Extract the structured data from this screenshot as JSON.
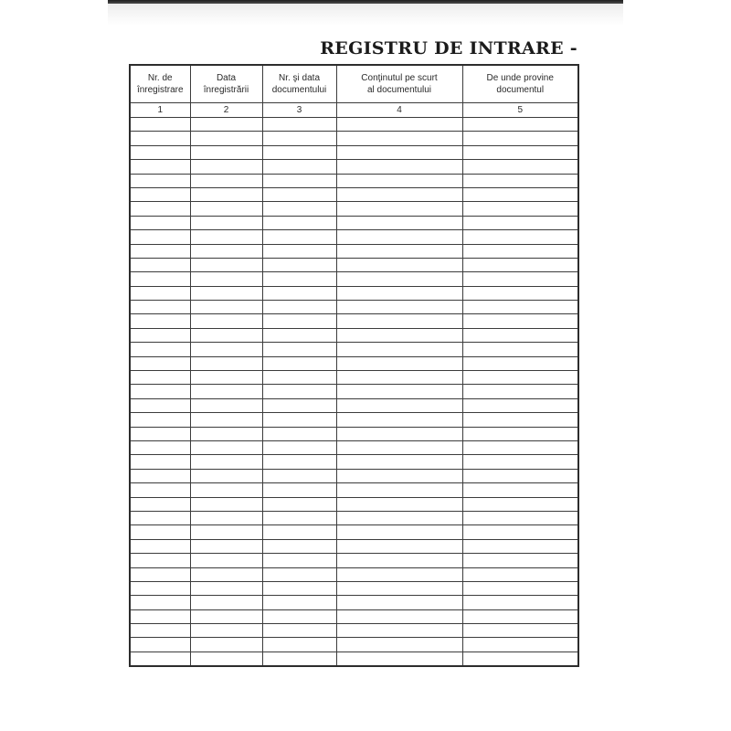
{
  "document": {
    "title": "REGISTRU DE INTRARE -"
  },
  "table": {
    "columns": [
      {
        "label": "Nr. de\nînregistrare",
        "number": "1"
      },
      {
        "label": "Data\nînregistrării",
        "number": "2"
      },
      {
        "label": "Nr. şi data\ndocumentului",
        "number": "3"
      },
      {
        "label": "Conţinutul pe scurt\nal documentului",
        "number": "4"
      },
      {
        "label": "De unde provine\ndocumentul",
        "number": "5"
      }
    ],
    "empty_row_count": 39,
    "cell_values": []
  },
  "colors": {
    "page_background": "#ffffff",
    "table_border": "#3c3c3c",
    "text": "#2a2a2a",
    "scan_edge": "#1f1f1f"
  }
}
